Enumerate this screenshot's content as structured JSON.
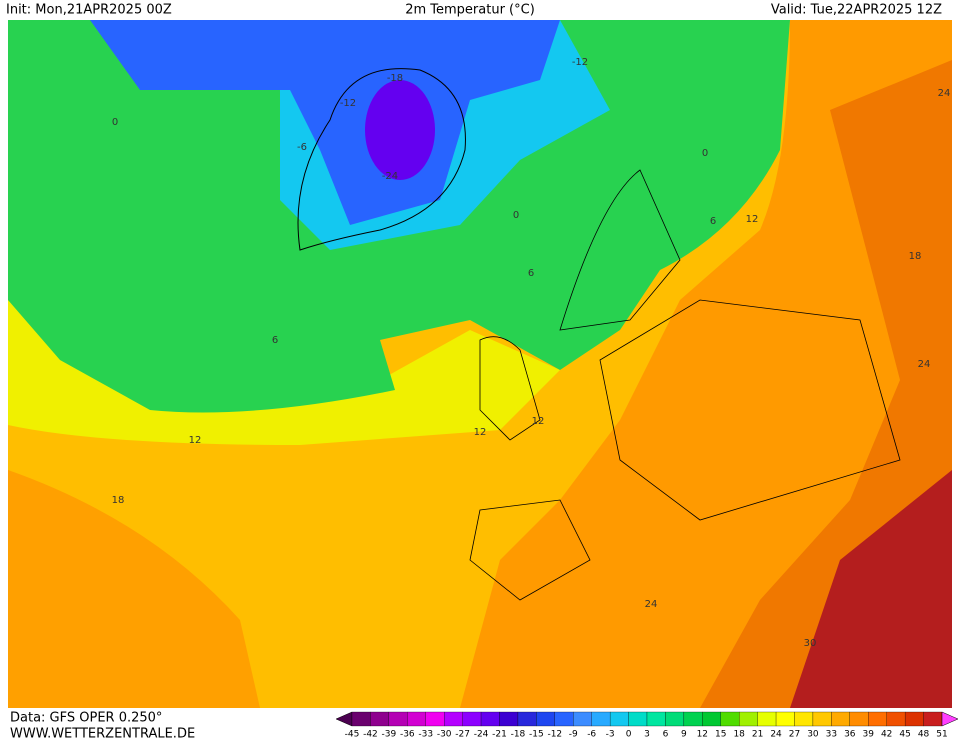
{
  "header": {
    "init": "Init: Mon,21APR2025 00Z",
    "title": "2m Temperatur (°C)",
    "valid": "Valid: Tue,22APR2025 12Z"
  },
  "map": {
    "contour_labels": [
      -18,
      -12,
      -6,
      -24,
      -12,
      0,
      0,
      0,
      6,
      12,
      6,
      6,
      12,
      12,
      12,
      18,
      18,
      24,
      24,
      24,
      30
    ]
  },
  "footer": {
    "data": "Data: GFS OPER 0.250°",
    "website": "WWW.WETTERZENTRALE.DE"
  },
  "colorbar": {
    "labels": [
      -45,
      -42,
      -39,
      -36,
      -33,
      -30,
      -27,
      -24,
      -21,
      -18,
      -15,
      -12,
      -9,
      -6,
      -3,
      0,
      3,
      6,
      9,
      12,
      15,
      18,
      21,
      24,
      27,
      30,
      33,
      36,
      39,
      42,
      45,
      48,
      51
    ],
    "colors": [
      "#4b0050",
      "#6a006e",
      "#8e008e",
      "#b400b4",
      "#d200d2",
      "#f000f0",
      "#b400ff",
      "#8c00ff",
      "#6400f0",
      "#3c00d2",
      "#2828dc",
      "#1e46f0",
      "#2864ff",
      "#3c8cff",
      "#28aaff",
      "#14c8f0",
      "#00dcc8",
      "#00e6a0",
      "#00dc78",
      "#00d250",
      "#00c832",
      "#50dc00",
      "#a0f000",
      "#e6ff00",
      "#ffff00",
      "#ffe600",
      "#ffc800",
      "#ffaa00",
      "#ff8c00",
      "#ff6e00",
      "#f05000",
      "#dc3200",
      "#c81e1e",
      "#ff40ff"
    ]
  }
}
